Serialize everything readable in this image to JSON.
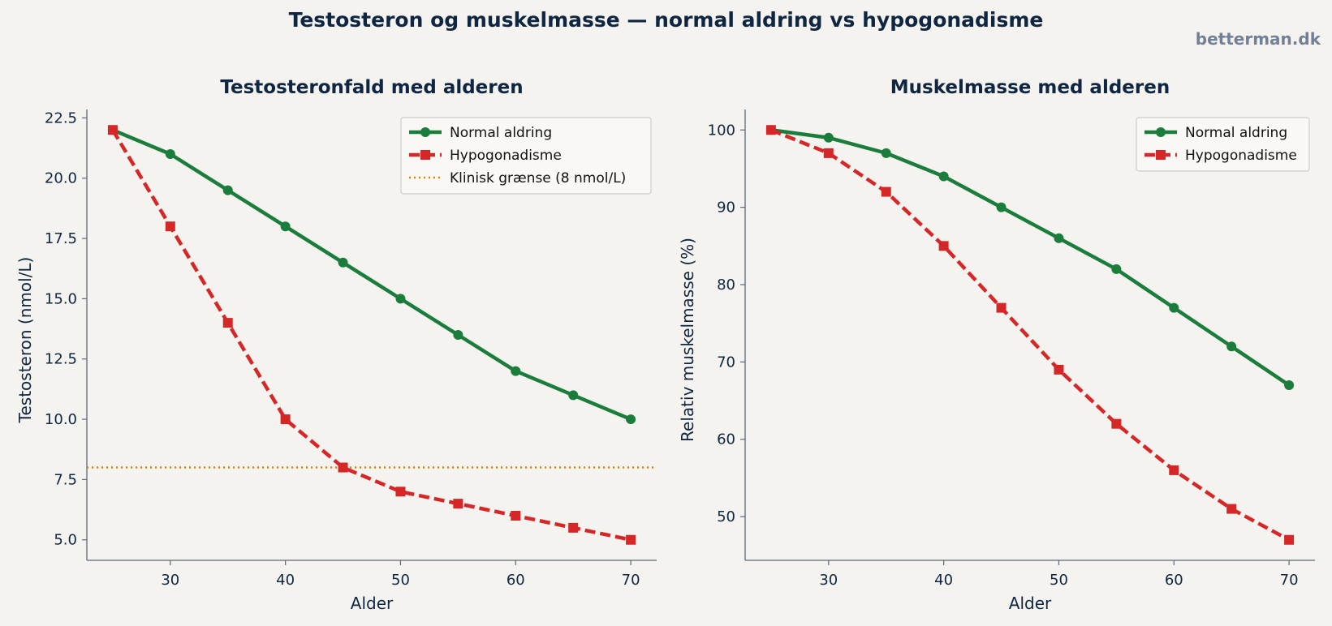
{
  "header": {
    "title": "Testosteron og muskelmasse — normal aldring vs hypogonadisme",
    "brand": "betterman.dk"
  },
  "colors": {
    "normal": "#1a7d3c",
    "hypo": "#d62728",
    "threshold": "#e67e00",
    "text": "#0f2642"
  },
  "chart_data": [
    {
      "type": "line",
      "title": "Testosteronfald med alderen",
      "xlabel": "Alder",
      "ylabel": "Testosteron (nmol/L)",
      "x": [
        25,
        30,
        35,
        40,
        45,
        50,
        55,
        60,
        65,
        70
      ],
      "xlim": [
        22.75,
        72.25
      ],
      "ylim": [
        4.15,
        22.85
      ],
      "xticks": [
        "30",
        "40",
        "50",
        "60",
        "70"
      ],
      "yticks": [
        "5.0",
        "7.5",
        "10.0",
        "12.5",
        "15.0",
        "17.5",
        "20.0",
        "22.5"
      ],
      "series": [
        {
          "name": "Normal aldring",
          "color": "#1a7d3c",
          "marker": "circle",
          "dash": "solid",
          "values": [
            22,
            21,
            19.5,
            18,
            16.5,
            15,
            13.5,
            12,
            11,
            10
          ]
        },
        {
          "name": "Hypogonadisme",
          "color": "#d62728",
          "marker": "square",
          "dash": "dashed",
          "values": [
            22,
            18,
            14,
            10,
            8,
            7,
            6.5,
            6,
            5.5,
            5
          ]
        }
      ],
      "hline": {
        "name": "Klinisk grænse (8 nmol/L)",
        "y": 8,
        "color": "#e67e00",
        "dash": "dotted"
      },
      "grid": false,
      "legend": "top-right"
    },
    {
      "type": "line",
      "title": "Muskelmasse med alderen",
      "xlabel": "Alder",
      "ylabel": "Relativ muskelmasse (%)",
      "x": [
        25,
        30,
        35,
        40,
        45,
        50,
        55,
        60,
        65,
        70
      ],
      "xlim": [
        22.75,
        72.25
      ],
      "ylim": [
        44.35,
        102.65
      ],
      "xticks": [
        "30",
        "40",
        "50",
        "60",
        "70"
      ],
      "yticks": [
        "50",
        "60",
        "70",
        "80",
        "90",
        "100"
      ],
      "series": [
        {
          "name": "Normal aldring",
          "color": "#1a7d3c",
          "marker": "circle",
          "dash": "solid",
          "values": [
            100,
            99,
            97,
            94,
            90,
            86,
            82,
            77,
            72,
            67
          ]
        },
        {
          "name": "Hypogonadisme",
          "color": "#d62728",
          "marker": "square",
          "dash": "dashed",
          "values": [
            100,
            97,
            92,
            85,
            77,
            69,
            62,
            56,
            51,
            47
          ]
        }
      ],
      "grid": false,
      "legend": "top-right"
    }
  ]
}
